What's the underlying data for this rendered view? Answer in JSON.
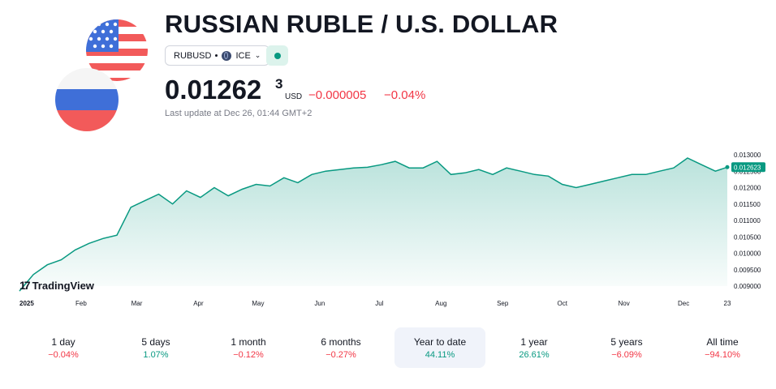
{
  "header": {
    "title": "RUSSIAN RUBLE / U.S. DOLLAR",
    "symbol": "RUBUSD",
    "exchange": "ICE",
    "status_color": "#089981"
  },
  "quote": {
    "price_main": "0.01262",
    "price_sup": "3",
    "currency": "USD",
    "change": "−0.000005",
    "change_pct": "−0.04%",
    "last_update": "Last update at Dec 26, 01:44 GMT+2",
    "down_color": "#f23645",
    "up_color": "#089981"
  },
  "chart_data": {
    "type": "area",
    "x_labels": [
      "2025",
      "Feb",
      "Mar",
      "Apr",
      "May",
      "Jun",
      "Jul",
      "Aug",
      "Sep",
      "Oct",
      "Nov",
      "Dec",
      "23"
    ],
    "y_ticks": [
      "0.013000",
      "0.012500",
      "0.012000",
      "0.011500",
      "0.011000",
      "0.010500",
      "0.010000",
      "0.009500",
      "0.009000"
    ],
    "last_value_label": "0.012623",
    "ylim": [
      0.009,
      0.013
    ],
    "x": [
      "2025-01-01",
      "2025-01-08",
      "2025-01-15",
      "2025-01-22",
      "2025-01-29",
      "2025-02-05",
      "2025-02-12",
      "2025-02-19",
      "2025-02-26",
      "2025-03-05",
      "2025-03-12",
      "2025-03-19",
      "2025-03-26",
      "2025-04-02",
      "2025-04-09",
      "2025-04-16",
      "2025-04-23",
      "2025-04-30",
      "2025-05-07",
      "2025-05-14",
      "2025-05-21",
      "2025-05-28",
      "2025-06-04",
      "2025-06-11",
      "2025-06-18",
      "2025-06-25",
      "2025-07-02",
      "2025-07-09",
      "2025-07-16",
      "2025-07-23",
      "2025-07-30",
      "2025-08-06",
      "2025-08-13",
      "2025-08-20",
      "2025-08-27",
      "2025-09-03",
      "2025-09-10",
      "2025-09-17",
      "2025-09-24",
      "2025-10-01",
      "2025-10-08",
      "2025-10-15",
      "2025-10-22",
      "2025-10-29",
      "2025-11-05",
      "2025-11-12",
      "2025-11-19",
      "2025-11-26",
      "2025-12-03",
      "2025-12-10",
      "2025-12-17",
      "2025-12-23"
    ],
    "values": [
      0.00885,
      0.00935,
      0.00965,
      0.0098,
      0.0101,
      0.0103,
      0.01045,
      0.01055,
      0.0114,
      0.0116,
      0.0118,
      0.0115,
      0.0119,
      0.0117,
      0.012,
      0.01175,
      0.01195,
      0.0121,
      0.01205,
      0.0123,
      0.01215,
      0.0124,
      0.0125,
      0.01255,
      0.0126,
      0.01262,
      0.0127,
      0.0128,
      0.0126,
      0.0126,
      0.0128,
      0.0124,
      0.01245,
      0.01255,
      0.0124,
      0.0126,
      0.0125,
      0.0124,
      0.01235,
      0.0121,
      0.012,
      0.0121,
      0.0122,
      0.0123,
      0.0124,
      0.0124,
      0.0125,
      0.0126,
      0.0129,
      0.0127,
      0.0125,
      0.012623
    ],
    "line_color": "#089981"
  },
  "branding": {
    "logo_text": "TradingView",
    "logo_mark": "17"
  },
  "periods": [
    {
      "label": "1 day",
      "value": "−0.04%",
      "dir": "neg"
    },
    {
      "label": "5 days",
      "value": "1.07%",
      "dir": "pos"
    },
    {
      "label": "1 month",
      "value": "−0.12%",
      "dir": "neg"
    },
    {
      "label": "6 months",
      "value": "−0.27%",
      "dir": "neg"
    },
    {
      "label": "Year to date",
      "value": "44.11%",
      "dir": "pos",
      "active": true
    },
    {
      "label": "1 year",
      "value": "26.61%",
      "dir": "pos"
    },
    {
      "label": "5 years",
      "value": "−6.09%",
      "dir": "neg"
    },
    {
      "label": "All time",
      "value": "−94.10%",
      "dir": "neg"
    }
  ]
}
